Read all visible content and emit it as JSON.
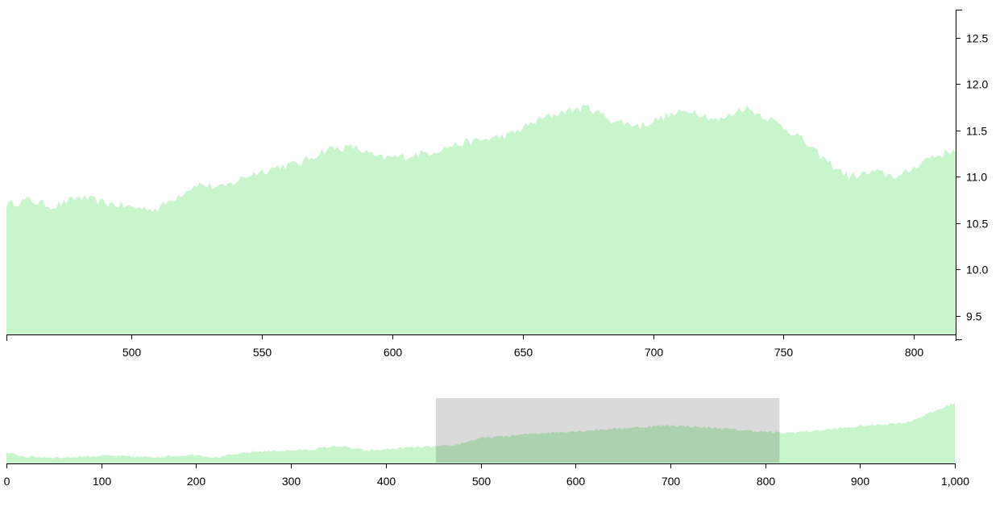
{
  "colors": {
    "area": "#c9f5cd",
    "axis": "#000000",
    "brush": "#d4d4d4",
    "brush_border": "#ffffff"
  },
  "chart_data": [
    {
      "name": "focus-chart",
      "type": "area",
      "x_domain": [
        452,
        816
      ],
      "y_domain": [
        9.3,
        12.8
      ],
      "x_ticks": [
        500,
        550,
        600,
        650,
        700,
        750,
        800
      ],
      "y_ticks": [
        9.5,
        10.0,
        10.5,
        11.0,
        11.5,
        12.0,
        12.5
      ],
      "y_axis_position": "right",
      "x_axis_position": "bottom",
      "grid": false,
      "points": [
        [
          452,
          10.7
        ],
        [
          460,
          10.75
        ],
        [
          470,
          10.68
        ],
        [
          480,
          10.78
        ],
        [
          490,
          10.72
        ],
        [
          500,
          10.67
        ],
        [
          510,
          10.65
        ],
        [
          515,
          10.75
        ],
        [
          525,
          10.92
        ],
        [
          535,
          10.88
        ],
        [
          545,
          11.02
        ],
        [
          555,
          11.1
        ],
        [
          565,
          11.15
        ],
        [
          575,
          11.3
        ],
        [
          585,
          11.32
        ],
        [
          595,
          11.2
        ],
        [
          605,
          11.22
        ],
        [
          615,
          11.27
        ],
        [
          625,
          11.35
        ],
        [
          635,
          11.4
        ],
        [
          645,
          11.45
        ],
        [
          655,
          11.6
        ],
        [
          665,
          11.7
        ],
        [
          675,
          11.75
        ],
        [
          685,
          11.6
        ],
        [
          695,
          11.55
        ],
        [
          705,
          11.65
        ],
        [
          715,
          11.72
        ],
        [
          725,
          11.6
        ],
        [
          735,
          11.75
        ],
        [
          745,
          11.62
        ],
        [
          755,
          11.45
        ],
        [
          765,
          11.2
        ],
        [
          775,
          11.0
        ],
        [
          785,
          11.05
        ],
        [
          795,
          11.0
        ],
        [
          805,
          11.2
        ],
        [
          812,
          11.25
        ],
        [
          816,
          11.3
        ]
      ]
    },
    {
      "name": "context-chart",
      "type": "area",
      "x_domain": [
        0,
        1000
      ],
      "y_domain": [
        9.3,
        12.8
      ],
      "x_ticks": [
        0,
        100,
        200,
        300,
        400,
        500,
        600,
        700,
        800,
        900,
        1000
      ],
      "x_tick_labels": [
        "0",
        "100",
        "200",
        "300",
        "400",
        "500",
        "600",
        "700",
        "800",
        "900",
        "1,000"
      ],
      "x_axis_position": "bottom",
      "grid": false,
      "brush_selection": [
        452,
        816
      ],
      "points": [
        [
          0,
          9.85
        ],
        [
          20,
          9.65
        ],
        [
          60,
          9.6
        ],
        [
          100,
          9.7
        ],
        [
          150,
          9.62
        ],
        [
          200,
          9.75
        ],
        [
          220,
          9.6
        ],
        [
          260,
          9.9
        ],
        [
          320,
          10.0
        ],
        [
          350,
          10.2
        ],
        [
          380,
          9.95
        ],
        [
          420,
          10.1
        ],
        [
          470,
          10.2
        ],
        [
          500,
          10.6
        ],
        [
          530,
          10.7
        ],
        [
          560,
          10.85
        ],
        [
          600,
          10.95
        ],
        [
          650,
          11.1
        ],
        [
          700,
          11.25
        ],
        [
          750,
          11.1
        ],
        [
          790,
          10.95
        ],
        [
          820,
          10.85
        ],
        [
          860,
          11.0
        ],
        [
          900,
          11.2
        ],
        [
          950,
          11.4
        ],
        [
          1000,
          12.4
        ]
      ]
    }
  ]
}
